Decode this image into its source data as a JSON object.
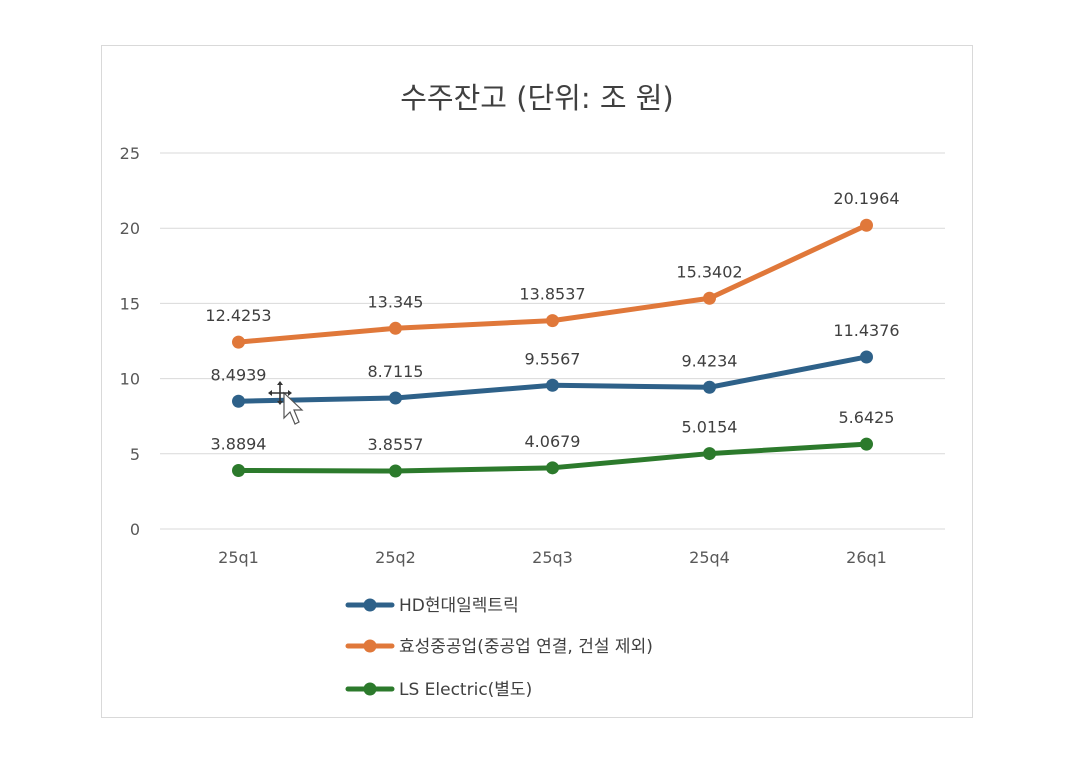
{
  "chart_data": {
    "type": "line",
    "title": "수주잔고 (단위: 조 원)",
    "categories": [
      "25q1",
      "25q2",
      "25q3",
      "25q4",
      "26q1"
    ],
    "ylim": [
      0,
      25
    ],
    "yticks": [
      0,
      5,
      10,
      15,
      20,
      25
    ],
    "grid": true,
    "legend_position": "bottom",
    "data_labels": true,
    "series": [
      {
        "name": "HD현대일렉트릭",
        "color": "#2e6189",
        "values": [
          8.4939,
          8.7115,
          9.5567,
          9.4234,
          11.4376
        ],
        "labels": [
          "8.4939",
          "8.7115",
          "9.5567",
          "9.4234",
          "11.4376"
        ]
      },
      {
        "name": "효성중공업(중공업 연결, 건설 제외)",
        "color": "#e0783a",
        "values": [
          12.4253,
          13.345,
          13.8537,
          15.3402,
          20.1964
        ],
        "labels": [
          "12.4253",
          "13.345",
          "13.8537",
          "15.3402",
          "20.1964"
        ]
      },
      {
        "name": "LS Electric(별도)",
        "color": "#2c7a2c",
        "values": [
          3.8894,
          3.8557,
          4.0679,
          5.0154,
          5.6425
        ],
        "labels": [
          "3.8894",
          "3.8557",
          "4.0679",
          "5.0154",
          "5.6425"
        ]
      }
    ]
  }
}
